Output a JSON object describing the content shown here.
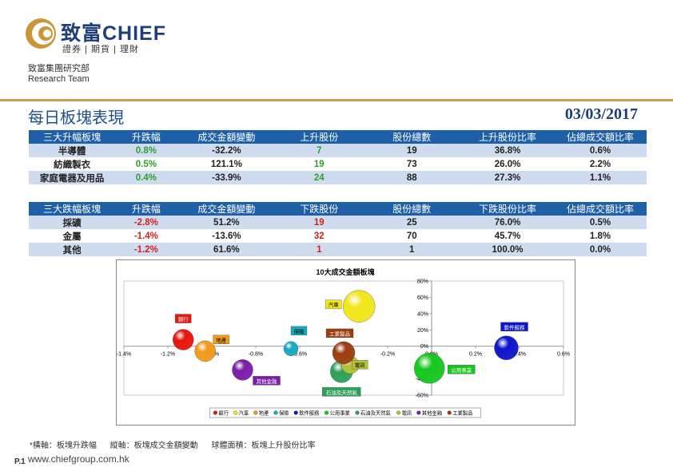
{
  "header": {
    "brand": "致富CHIEF",
    "brand_sub": "證券 | 期貨 | 理財",
    "dept_cn": "致富集團研究部",
    "dept_en": "Research Team",
    "title": "每日板塊表現",
    "date": "03/03/2017"
  },
  "up_table": {
    "headers": [
      "三大升幅板塊",
      "升跌幅",
      "成交金額變動",
      "上升股份",
      "股份總數",
      "上升股份比率",
      "佔總成交額比率"
    ],
    "rows": [
      [
        "半導體",
        "0.8%",
        "-32.2%",
        "7",
        "19",
        "36.8%",
        "0.6%"
      ],
      [
        "紡織製衣",
        "0.5%",
        "121.1%",
        "19",
        "73",
        "26.0%",
        "2.2%"
      ],
      [
        "家庭電器及用品",
        "0.4%",
        "-33.9%",
        "24",
        "88",
        "27.3%",
        "1.1%"
      ]
    ]
  },
  "down_table": {
    "headers": [
      "三大跌幅板塊",
      "升跌幅",
      "成交金額變動",
      "下跌股份",
      "股份總數",
      "下跌股份比率",
      "佔總成交額比率"
    ],
    "rows": [
      [
        "採礦",
        "-2.8%",
        "51.2%",
        "19",
        "25",
        "76.0%",
        "0.5%"
      ],
      [
        "金屬",
        "-1.4%",
        "-13.6%",
        "32",
        "70",
        "45.7%",
        "1.8%"
      ],
      [
        "其他",
        "-1.2%",
        "61.6%",
        "1",
        "1",
        "100.0%",
        "0.0%"
      ]
    ]
  },
  "chart_data": {
    "type": "scatter",
    "title": "10大成交金額板塊",
    "xlim": [
      -1.4,
      0.6
    ],
    "ylim": [
      -0.6,
      0.8
    ],
    "x_ticks": [
      "-1.4%",
      "-1.2%",
      "-1.0%",
      "-0.8%",
      "-0.6%",
      "-0.4%",
      "-0.2%",
      "0.0%",
      "0.2%",
      "0.4%",
      "0.6%"
    ],
    "y_ticks": [
      "-60%",
      "-40%",
      "-20%",
      "0%",
      "20%",
      "40%",
      "60%",
      "80%"
    ],
    "series": [
      {
        "name": "銀行",
        "x": -1.13,
        "y": 0.08,
        "r": 13,
        "color": "#e8160c"
      },
      {
        "name": "汽車",
        "x": -0.33,
        "y": 0.49,
        "r": 20,
        "color": "#f2e51a"
      },
      {
        "name": "地產",
        "x": -1.03,
        "y": -0.06,
        "r": 13,
        "color": "#f39a1a"
      },
      {
        "name": "保險",
        "x": -0.64,
        "y": -0.03,
        "r": 9,
        "color": "#17aabf"
      },
      {
        "name": "軟件服務",
        "x": 0.34,
        "y": -0.02,
        "r": 15,
        "color": "#0d16c9"
      },
      {
        "name": "公用事業",
        "x": -0.01,
        "y": -0.27,
        "r": 19,
        "color": "#17c71f"
      },
      {
        "name": "石油及天然氣",
        "x": -0.41,
        "y": -0.31,
        "r": 14,
        "color": "#2fa05a"
      },
      {
        "name": "電訊",
        "x": -0.37,
        "y": -0.23,
        "r": 11,
        "color": "#b7c23a"
      },
      {
        "name": "其他金融",
        "x": -0.86,
        "y": -0.29,
        "r": 13,
        "color": "#7a1ea8"
      },
      {
        "name": "工業製品",
        "x": -0.4,
        "y": -0.08,
        "r": 14,
        "color": "#9b3f12"
      }
    ],
    "xlabel": "",
    "ylabel": "",
    "legend_position": "bottom"
  },
  "footer": {
    "note_x": "*橫軸：板塊升跌幅",
    "note_y": "縱軸：板塊成交金額變動",
    "note_area": "球體面積：板塊上升股份比率",
    "url": "www.chiefgroup.com.hk",
    "page": "P.1"
  }
}
